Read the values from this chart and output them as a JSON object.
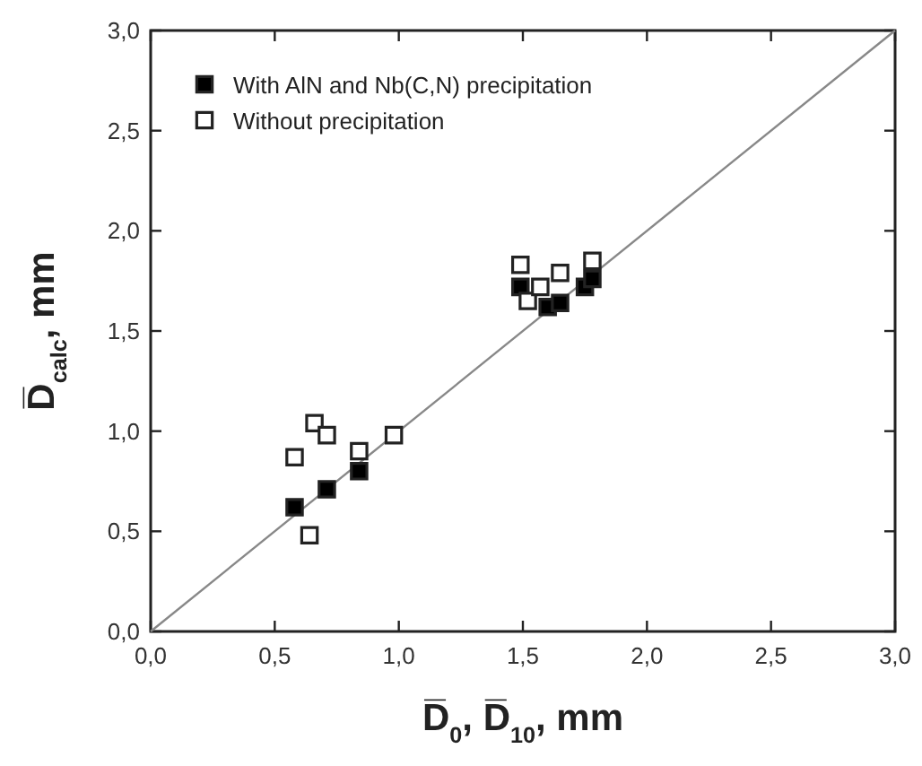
{
  "chart_data": {
    "type": "scatter",
    "xlabel": "D̅$_{0}$, D̅$_{10}$, mm",
    "ylabel": "D̅$_{calc}$, mm",
    "marker": "square",
    "legend": "top left",
    "grid": false,
    "xlim": [
      0,
      3
    ],
    "ylim": [
      0,
      3
    ],
    "xticks": [
      {
        "value": 0,
        "label": "0,0"
      },
      {
        "value": 0.5,
        "label": "0,5"
      },
      {
        "value": 1,
        "label": "1,0"
      },
      {
        "value": 1.5,
        "label": "1,5"
      },
      {
        "value": 2,
        "label": "2,0"
      },
      {
        "value": 2.5,
        "label": "2,5"
      },
      {
        "value": 3,
        "label": "3,0"
      }
    ],
    "yticks": [
      {
        "value": 0,
        "label": "0,0"
      },
      {
        "value": 0.5,
        "label": "0,5"
      },
      {
        "value": 1,
        "label": "1,0"
      },
      {
        "value": 1.5,
        "label": "1,5"
      },
      {
        "value": 2,
        "label": "2,0"
      },
      {
        "value": 2.5,
        "label": "2,5"
      },
      {
        "value": 3,
        "label": "3,0"
      }
    ],
    "series": [
      {
        "type": "line",
        "marker": "none",
        "color": "#888888",
        "x": [
          0,
          3
        ],
        "values": [
          0,
          3
        ]
      },
      {
        "name": "With AlN and Nb(C,N) precipitation",
        "color": "#000000",
        "x": [
          0.58,
          0.71,
          0.84,
          1.49,
          1.6,
          1.65,
          1.75,
          1.78
        ],
        "values": [
          0.62,
          0.71,
          0.8,
          1.72,
          1.62,
          1.64,
          1.72,
          1.76
        ]
      },
      {
        "name": "Without precipitation",
        "color": "#ffffff",
        "x": [
          0.58,
          0.64,
          0.66,
          0.71,
          0.84,
          0.98,
          1.49,
          1.52,
          1.57,
          1.65,
          1.78
        ],
        "values": [
          0.87,
          0.48,
          1.04,
          0.98,
          0.9,
          0.98,
          1.83,
          1.65,
          1.72,
          1.79,
          1.85
        ]
      }
    ]
  }
}
